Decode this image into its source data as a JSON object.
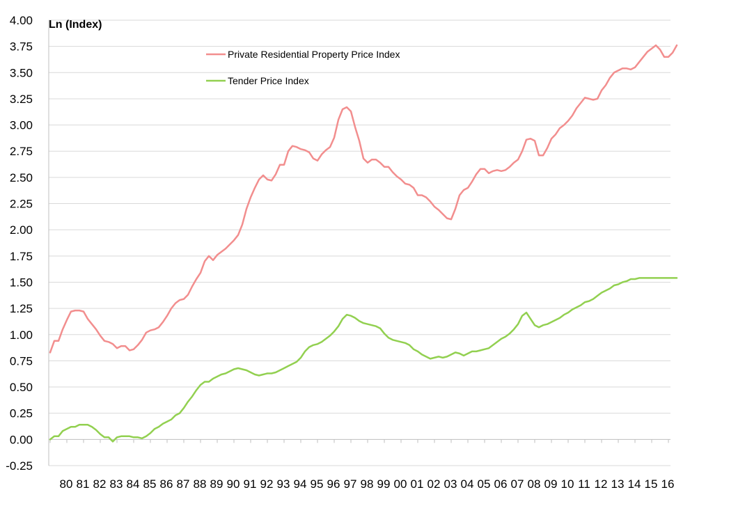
{
  "chart_data": {
    "type": "line",
    "title": "",
    "xlabel": "",
    "ylabel": "Ln (Index)",
    "ylim": [
      -0.25,
      4.0
    ],
    "ytick_step": 0.25,
    "x_tick_labels": [
      "80",
      "81",
      "82",
      "83",
      "84",
      "85",
      "86",
      "87",
      "88",
      "89",
      "90",
      "91",
      "92",
      "93",
      "94",
      "95",
      "96",
      "97",
      "98",
      "99",
      "00",
      "01",
      "02",
      "03",
      "04",
      "05",
      "06",
      "07",
      "08",
      "09",
      "10",
      "11",
      "12",
      "13",
      "14",
      "15",
      "16"
    ],
    "x_range": [
      1979.0,
      2016.0
    ],
    "grid": true,
    "legend_position": "top-center",
    "series": [
      {
        "name": "Private Residential Property Price Index",
        "color": "#f28e8e",
        "points": [
          [
            1979.0,
            0.83
          ],
          [
            1979.25,
            0.94
          ],
          [
            1979.5,
            0.94
          ],
          [
            1979.75,
            1.05
          ],
          [
            1980.0,
            1.14
          ],
          [
            1980.25,
            1.22
          ],
          [
            1980.5,
            1.23
          ],
          [
            1980.75,
            1.23
          ],
          [
            1981.0,
            1.22
          ],
          [
            1981.25,
            1.15
          ],
          [
            1981.5,
            1.1
          ],
          [
            1981.75,
            1.05
          ],
          [
            1982.0,
            0.99
          ],
          [
            1982.25,
            0.94
          ],
          [
            1982.5,
            0.93
          ],
          [
            1982.75,
            0.91
          ],
          [
            1983.0,
            0.87
          ],
          [
            1983.25,
            0.89
          ],
          [
            1983.5,
            0.89
          ],
          [
            1983.75,
            0.85
          ],
          [
            1984.0,
            0.86
          ],
          [
            1984.25,
            0.9
          ],
          [
            1984.5,
            0.95
          ],
          [
            1984.75,
            1.02
          ],
          [
            1985.0,
            1.04
          ],
          [
            1985.25,
            1.05
          ],
          [
            1985.5,
            1.07
          ],
          [
            1985.75,
            1.12
          ],
          [
            1986.0,
            1.18
          ],
          [
            1986.25,
            1.25
          ],
          [
            1986.5,
            1.3
          ],
          [
            1986.75,
            1.33
          ],
          [
            1987.0,
            1.34
          ],
          [
            1987.25,
            1.38
          ],
          [
            1987.5,
            1.46
          ],
          [
            1987.75,
            1.53
          ],
          [
            1988.0,
            1.59
          ],
          [
            1988.25,
            1.7
          ],
          [
            1988.5,
            1.75
          ],
          [
            1988.75,
            1.71
          ],
          [
            1989.0,
            1.76
          ],
          [
            1989.25,
            1.79
          ],
          [
            1989.5,
            1.82
          ],
          [
            1989.75,
            1.86
          ],
          [
            1990.0,
            1.9
          ],
          [
            1990.25,
            1.95
          ],
          [
            1990.5,
            2.05
          ],
          [
            1990.75,
            2.2
          ],
          [
            1991.0,
            2.31
          ],
          [
            1991.25,
            2.4
          ],
          [
            1991.5,
            2.48
          ],
          [
            1991.75,
            2.52
          ],
          [
            1992.0,
            2.48
          ],
          [
            1992.25,
            2.47
          ],
          [
            1992.5,
            2.53
          ],
          [
            1992.75,
            2.62
          ],
          [
            1993.0,
            2.62
          ],
          [
            1993.25,
            2.75
          ],
          [
            1993.5,
            2.8
          ],
          [
            1993.75,
            2.79
          ],
          [
            1994.0,
            2.77
          ],
          [
            1994.25,
            2.76
          ],
          [
            1994.5,
            2.74
          ],
          [
            1994.75,
            2.68
          ],
          [
            1995.0,
            2.66
          ],
          [
            1995.25,
            2.72
          ],
          [
            1995.5,
            2.76
          ],
          [
            1995.75,
            2.79
          ],
          [
            1996.0,
            2.88
          ],
          [
            1996.25,
            3.05
          ],
          [
            1996.5,
            3.15
          ],
          [
            1996.75,
            3.17
          ],
          [
            1997.0,
            3.13
          ],
          [
            1997.25,
            2.98
          ],
          [
            1997.5,
            2.85
          ],
          [
            1997.75,
            2.68
          ],
          [
            1998.0,
            2.64
          ],
          [
            1998.25,
            2.67
          ],
          [
            1998.5,
            2.67
          ],
          [
            1998.75,
            2.64
          ],
          [
            1999.0,
            2.6
          ],
          [
            1999.25,
            2.6
          ],
          [
            1999.5,
            2.55
          ],
          [
            1999.75,
            2.51
          ],
          [
            2000.0,
            2.48
          ],
          [
            2000.25,
            2.44
          ],
          [
            2000.5,
            2.43
          ],
          [
            2000.75,
            2.4
          ],
          [
            2001.0,
            2.33
          ],
          [
            2001.25,
            2.33
          ],
          [
            2001.5,
            2.31
          ],
          [
            2001.75,
            2.27
          ],
          [
            2002.0,
            2.22
          ],
          [
            2002.25,
            2.19
          ],
          [
            2002.5,
            2.15
          ],
          [
            2002.75,
            2.11
          ],
          [
            2003.0,
            2.1
          ],
          [
            2003.25,
            2.2
          ],
          [
            2003.5,
            2.33
          ],
          [
            2003.75,
            2.38
          ],
          [
            2004.0,
            2.4
          ],
          [
            2004.25,
            2.46
          ],
          [
            2004.5,
            2.53
          ],
          [
            2004.75,
            2.58
          ],
          [
            2005.0,
            2.58
          ],
          [
            2005.25,
            2.54
          ],
          [
            2005.5,
            2.56
          ],
          [
            2005.75,
            2.57
          ],
          [
            2006.0,
            2.56
          ],
          [
            2006.25,
            2.57
          ],
          [
            2006.5,
            2.6
          ],
          [
            2006.75,
            2.64
          ],
          [
            2007.0,
            2.67
          ],
          [
            2007.25,
            2.75
          ],
          [
            2007.5,
            2.86
          ],
          [
            2007.75,
            2.87
          ],
          [
            2008.0,
            2.85
          ],
          [
            2008.25,
            2.71
          ],
          [
            2008.5,
            2.71
          ],
          [
            2008.75,
            2.78
          ],
          [
            2009.0,
            2.87
          ],
          [
            2009.25,
            2.91
          ],
          [
            2009.5,
            2.97
          ],
          [
            2009.75,
            3.0
          ],
          [
            2010.0,
            3.04
          ],
          [
            2010.25,
            3.09
          ],
          [
            2010.5,
            3.16
          ],
          [
            2010.75,
            3.21
          ],
          [
            2011.0,
            3.26
          ],
          [
            2011.25,
            3.25
          ],
          [
            2011.5,
            3.24
          ],
          [
            2011.75,
            3.25
          ],
          [
            2012.0,
            3.33
          ],
          [
            2012.25,
            3.38
          ],
          [
            2012.5,
            3.45
          ],
          [
            2012.75,
            3.5
          ],
          [
            2013.0,
            3.52
          ],
          [
            2013.25,
            3.54
          ],
          [
            2013.5,
            3.54
          ],
          [
            2013.75,
            3.53
          ],
          [
            2014.0,
            3.55
          ],
          [
            2014.25,
            3.6
          ],
          [
            2014.5,
            3.65
          ],
          [
            2014.75,
            3.7
          ],
          [
            2015.0,
            3.73
          ],
          [
            2015.25,
            3.76
          ],
          [
            2015.5,
            3.72
          ],
          [
            2015.75,
            3.65
          ],
          [
            2016.0,
            3.65
          ],
          [
            2016.25,
            3.69
          ],
          [
            2016.5,
            3.76
          ]
        ]
      },
      {
        "name": "Tender Price Index",
        "color": "#92d050",
        "points": [
          [
            1979.0,
            0.0
          ],
          [
            1979.25,
            0.03
          ],
          [
            1979.5,
            0.03
          ],
          [
            1979.75,
            0.08
          ],
          [
            1980.0,
            0.1
          ],
          [
            1980.25,
            0.12
          ],
          [
            1980.5,
            0.12
          ],
          [
            1980.75,
            0.14
          ],
          [
            1981.0,
            0.14
          ],
          [
            1981.25,
            0.14
          ],
          [
            1981.5,
            0.12
          ],
          [
            1981.75,
            0.09
          ],
          [
            1982.0,
            0.05
          ],
          [
            1982.25,
            0.02
          ],
          [
            1982.5,
            0.02
          ],
          [
            1982.75,
            -0.02
          ],
          [
            1983.0,
            0.02
          ],
          [
            1983.25,
            0.03
          ],
          [
            1983.5,
            0.03
          ],
          [
            1983.75,
            0.03
          ],
          [
            1984.0,
            0.02
          ],
          [
            1984.25,
            0.02
          ],
          [
            1984.5,
            0.01
          ],
          [
            1984.75,
            0.03
          ],
          [
            1985.0,
            0.06
          ],
          [
            1985.25,
            0.1
          ],
          [
            1985.5,
            0.12
          ],
          [
            1985.75,
            0.15
          ],
          [
            1986.0,
            0.17
          ],
          [
            1986.25,
            0.19
          ],
          [
            1986.5,
            0.23
          ],
          [
            1986.75,
            0.25
          ],
          [
            1987.0,
            0.3
          ],
          [
            1987.25,
            0.36
          ],
          [
            1987.5,
            0.41
          ],
          [
            1987.75,
            0.47
          ],
          [
            1988.0,
            0.52
          ],
          [
            1988.25,
            0.55
          ],
          [
            1988.5,
            0.55
          ],
          [
            1988.75,
            0.58
          ],
          [
            1989.0,
            0.6
          ],
          [
            1989.25,
            0.62
          ],
          [
            1989.5,
            0.63
          ],
          [
            1989.75,
            0.65
          ],
          [
            1990.0,
            0.67
          ],
          [
            1990.25,
            0.68
          ],
          [
            1990.5,
            0.67
          ],
          [
            1990.75,
            0.66
          ],
          [
            1991.0,
            0.64
          ],
          [
            1991.25,
            0.62
          ],
          [
            1991.5,
            0.61
          ],
          [
            1991.75,
            0.62
          ],
          [
            1992.0,
            0.63
          ],
          [
            1992.25,
            0.63
          ],
          [
            1992.5,
            0.64
          ],
          [
            1992.75,
            0.66
          ],
          [
            1993.0,
            0.68
          ],
          [
            1993.25,
            0.7
          ],
          [
            1993.5,
            0.72
          ],
          [
            1993.75,
            0.74
          ],
          [
            1994.0,
            0.78
          ],
          [
            1994.25,
            0.84
          ],
          [
            1994.5,
            0.88
          ],
          [
            1994.75,
            0.9
          ],
          [
            1995.0,
            0.91
          ],
          [
            1995.25,
            0.93
          ],
          [
            1995.5,
            0.96
          ],
          [
            1995.75,
            0.99
          ],
          [
            1996.0,
            1.03
          ],
          [
            1996.25,
            1.08
          ],
          [
            1996.5,
            1.15
          ],
          [
            1996.75,
            1.19
          ],
          [
            1997.0,
            1.18
          ],
          [
            1997.25,
            1.16
          ],
          [
            1997.5,
            1.13
          ],
          [
            1997.75,
            1.11
          ],
          [
            1998.0,
            1.1
          ],
          [
            1998.25,
            1.09
          ],
          [
            1998.5,
            1.08
          ],
          [
            1998.75,
            1.06
          ],
          [
            1999.0,
            1.01
          ],
          [
            1999.25,
            0.97
          ],
          [
            1999.5,
            0.95
          ],
          [
            1999.75,
            0.94
          ],
          [
            2000.0,
            0.93
          ],
          [
            2000.25,
            0.92
          ],
          [
            2000.5,
            0.9
          ],
          [
            2000.75,
            0.86
          ],
          [
            2001.0,
            0.84
          ],
          [
            2001.25,
            0.81
          ],
          [
            2001.5,
            0.79
          ],
          [
            2001.75,
            0.77
          ],
          [
            2002.0,
            0.78
          ],
          [
            2002.25,
            0.79
          ],
          [
            2002.5,
            0.78
          ],
          [
            2002.75,
            0.79
          ],
          [
            2003.0,
            0.81
          ],
          [
            2003.25,
            0.83
          ],
          [
            2003.5,
            0.82
          ],
          [
            2003.75,
            0.8
          ],
          [
            2004.0,
            0.82
          ],
          [
            2004.25,
            0.84
          ],
          [
            2004.5,
            0.84
          ],
          [
            2004.75,
            0.85
          ],
          [
            2005.0,
            0.86
          ],
          [
            2005.25,
            0.87
          ],
          [
            2005.5,
            0.9
          ],
          [
            2005.75,
            0.93
          ],
          [
            2006.0,
            0.96
          ],
          [
            2006.25,
            0.98
          ],
          [
            2006.5,
            1.01
          ],
          [
            2006.75,
            1.05
          ],
          [
            2007.0,
            1.1
          ],
          [
            2007.25,
            1.18
          ],
          [
            2007.5,
            1.21
          ],
          [
            2007.75,
            1.15
          ],
          [
            2008.0,
            1.09
          ],
          [
            2008.25,
            1.07
          ],
          [
            2008.5,
            1.09
          ],
          [
            2008.75,
            1.1
          ],
          [
            2009.0,
            1.12
          ],
          [
            2009.25,
            1.14
          ],
          [
            2009.5,
            1.16
          ],
          [
            2009.75,
            1.19
          ],
          [
            2010.0,
            1.21
          ],
          [
            2010.25,
            1.24
          ],
          [
            2010.5,
            1.26
          ],
          [
            2010.75,
            1.28
          ],
          [
            2011.0,
            1.31
          ],
          [
            2011.25,
            1.32
          ],
          [
            2011.5,
            1.34
          ],
          [
            2011.75,
            1.37
          ],
          [
            2012.0,
            1.4
          ],
          [
            2012.25,
            1.42
          ],
          [
            2012.5,
            1.44
          ],
          [
            2012.75,
            1.47
          ],
          [
            2013.0,
            1.48
          ],
          [
            2013.25,
            1.5
          ],
          [
            2013.5,
            1.51
          ],
          [
            2013.75,
            1.53
          ],
          [
            2014.0,
            1.53
          ],
          [
            2014.25,
            1.54
          ],
          [
            2014.5,
            1.54
          ],
          [
            2014.75,
            1.54
          ],
          [
            2015.0,
            1.54
          ],
          [
            2015.25,
            1.54
          ],
          [
            2015.5,
            1.54
          ],
          [
            2015.75,
            1.54
          ],
          [
            2016.0,
            1.54
          ],
          [
            2016.25,
            1.54
          ],
          [
            2016.5,
            1.54
          ]
        ]
      }
    ]
  }
}
